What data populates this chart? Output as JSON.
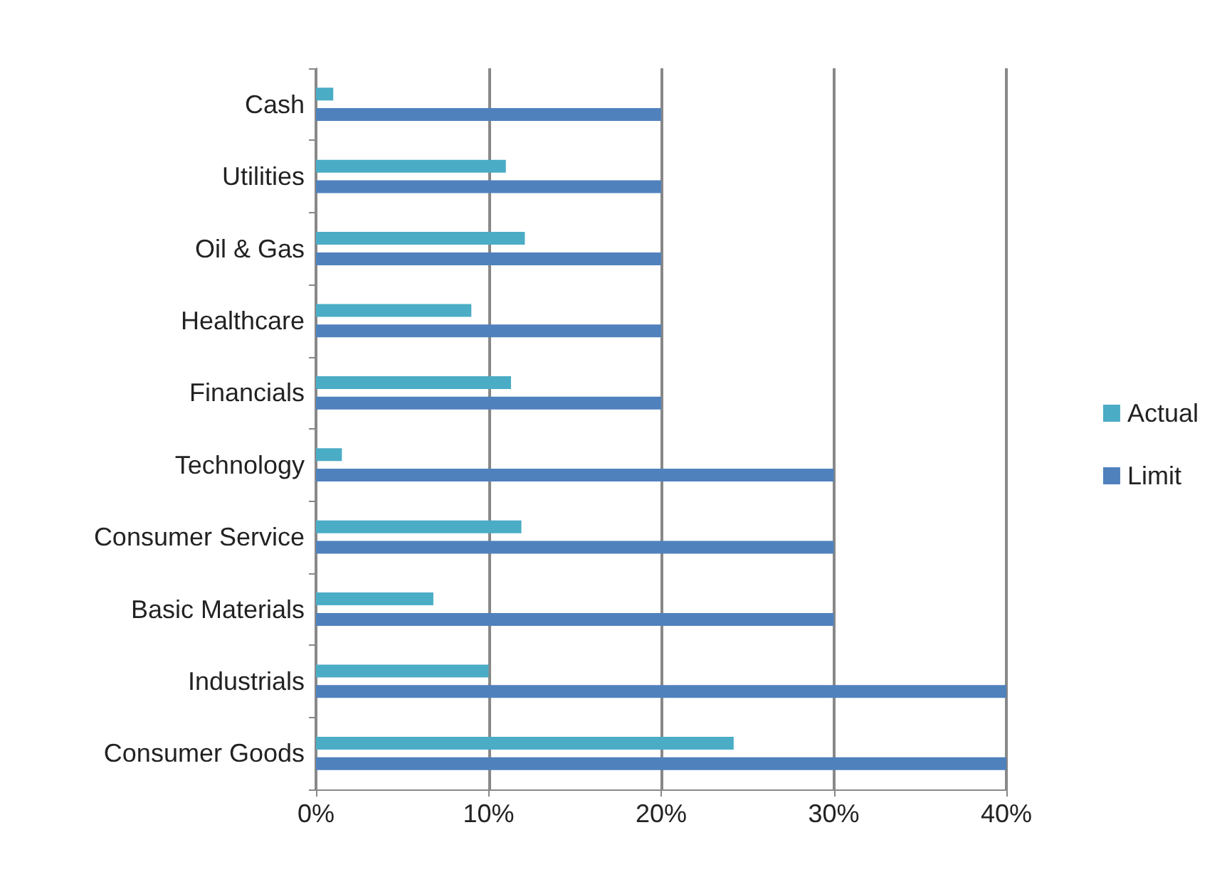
{
  "chart_data": {
    "type": "bar",
    "orientation": "horizontal",
    "categories": [
      "Cash",
      "Utilities",
      "Oil & Gas",
      "Healthcare",
      "Financials",
      "Technology",
      "Consumer Service",
      "Basic Materials",
      "Industrials",
      "Consumer Goods"
    ],
    "series": [
      {
        "name": "Actual",
        "color": "#4bacc6",
        "values": [
          1.0,
          11.0,
          12.1,
          9.0,
          11.3,
          1.5,
          11.9,
          6.8,
          10.0,
          24.2
        ]
      },
      {
        "name": "Limit",
        "color": "#4f81bd",
        "values": [
          20,
          20,
          20,
          20,
          20,
          30,
          30,
          30,
          40,
          40
        ]
      }
    ],
    "xlim": [
      0,
      40
    ],
    "xticks": [
      {
        "value": 0,
        "label": "0%"
      },
      {
        "value": 10,
        "label": "10%"
      },
      {
        "value": 20,
        "label": "20%"
      },
      {
        "value": 30,
        "label": "30%"
      },
      {
        "value": 40,
        "label": "40%"
      }
    ],
    "grid": "x",
    "legend": "right"
  }
}
